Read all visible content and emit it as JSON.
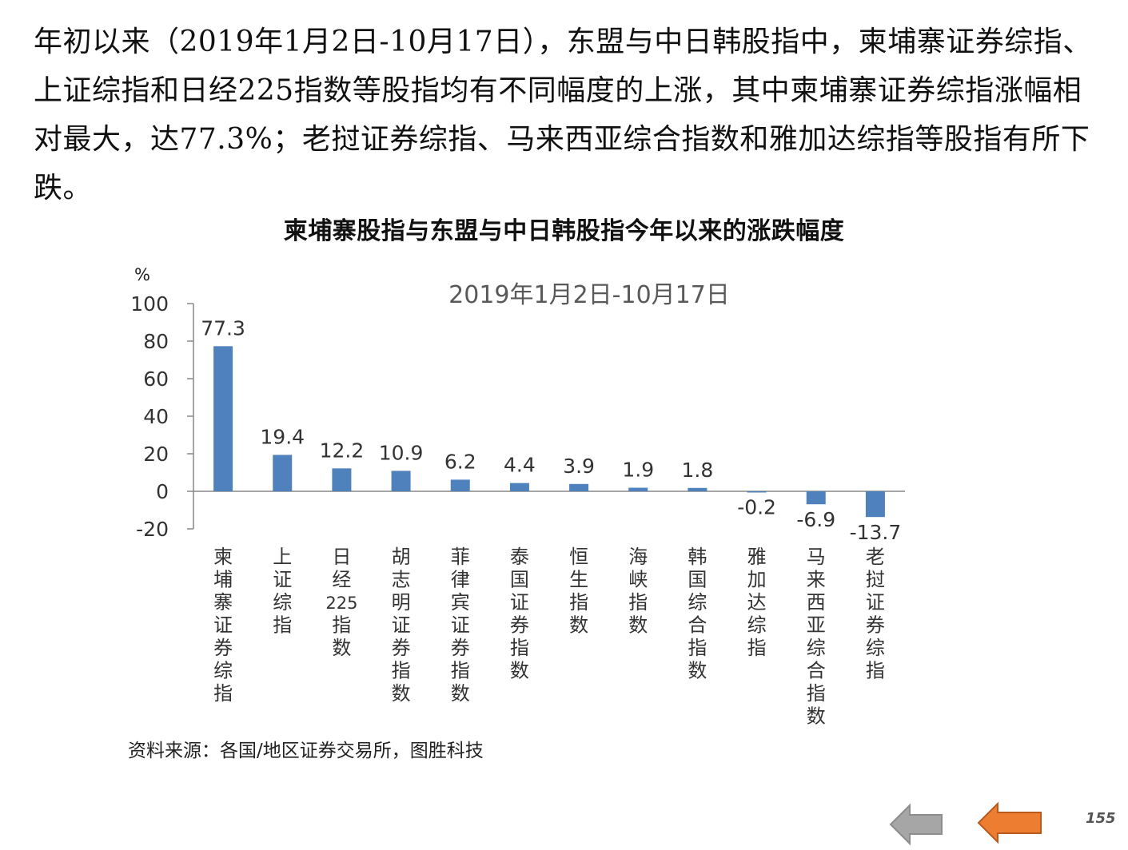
{
  "intro_text": "年初以来（2019年1月2日-10月17日），东盟与中日韩股指中，柬埔寨证券综指、上证综指和日经225指数等股指均有不同幅度的上涨，其中柬埔寨证券综指涨幅相对最大，达77.3%；老挝证券综指、马来西亚综合指数和雅加达综指等股指有所下跌。",
  "source": "资料来源：各国/地区证券交易所，图胜科技",
  "page_number": "155",
  "colors": {
    "bar": "#4f81bd",
    "axis": "#888888",
    "nav_back": "#a6a6a6",
    "nav_forward": "#ed7d31"
  },
  "nav": {
    "back_icon": "left-arrow-icon",
    "forward_icon": "left-arrow-icon"
  },
  "chart_data": {
    "type": "bar",
    "title": "柬埔寨股指与东盟与中日韩股指今年以来的涨跌幅度",
    "subtitle": "2019年1月2日-10月17日",
    "ylabel": "%",
    "xlabel": "",
    "ylim": [
      -20,
      100
    ],
    "yticks": [
      -20,
      0,
      20,
      40,
      60,
      80,
      100
    ],
    "grid": false,
    "categories": [
      "柬埔寨证券综指",
      "上证综指",
      "日经225指数",
      "胡志明证券指数",
      "菲律宾证券指数",
      "泰国证券指数",
      "恒生指数",
      "海峡指数",
      "韩国综合指数",
      "雅加达综指",
      "马来西亚综合指数",
      "老挝证券综指"
    ],
    "values": [
      77.3,
      19.4,
      12.2,
      10.9,
      6.2,
      4.4,
      3.9,
      1.9,
      1.8,
      -0.2,
      -6.9,
      -13.7
    ],
    "data_labels": [
      "77.3",
      "19.4",
      "12.2",
      "10.9",
      "6.2",
      "4.4",
      "3.9",
      "1.9",
      "1.8",
      "-0.2",
      "-6.9",
      "-13.7"
    ]
  }
}
